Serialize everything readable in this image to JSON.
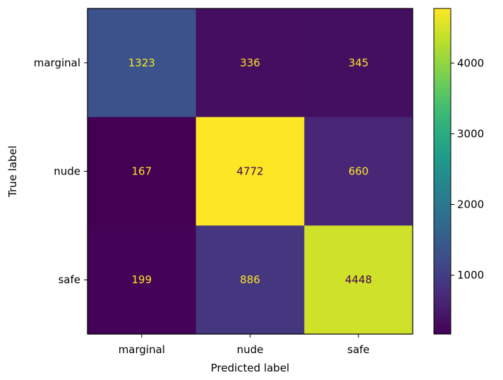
{
  "chart_data": {
    "type": "heatmap",
    "title": "",
    "xlabel": "Predicted label",
    "ylabel": "True label",
    "x_categories": [
      "marginal",
      "nude",
      "safe"
    ],
    "y_categories": [
      "marginal",
      "nude",
      "safe"
    ],
    "values": [
      [
        1323,
        336,
        345
      ],
      [
        167,
        4772,
        660
      ],
      [
        199,
        886,
        4448
      ]
    ],
    "colormap": "viridis",
    "colorbar": {
      "ticks": [
        1000,
        2000,
        3000,
        4000
      ],
      "tick_labels": [
        "1000",
        "2000",
        "3000",
        "4000"
      ],
      "range": [
        167,
        4772
      ]
    },
    "text_colors": {
      "on_dark": "#fde725",
      "on_light": "#440154"
    }
  }
}
